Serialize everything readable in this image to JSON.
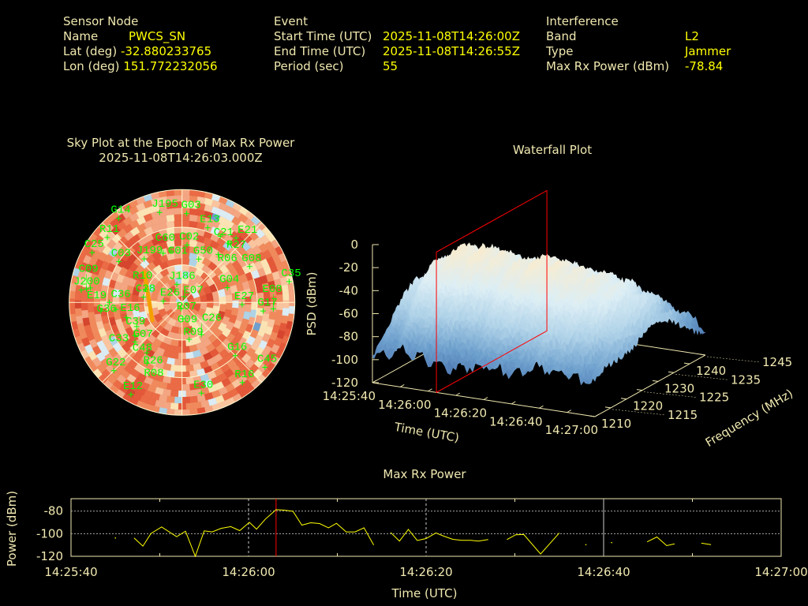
{
  "header": {
    "sensor_node": {
      "title": "Sensor Node",
      "name_label": "Name",
      "name": "PWCS_SN",
      "lat_label": "Lat (deg)",
      "lat": "-32.880233765",
      "lon_label": "Lon (deg)",
      "lon": "151.772232056"
    },
    "event": {
      "title": "Event",
      "start_label": "Start Time (UTC)",
      "start": "2025-11-08T14:26:00Z",
      "end_label": "End Time (UTC)",
      "end": "2025-11-08T14:26:55Z",
      "period_label": "Period (sec)",
      "period": "55"
    },
    "interference": {
      "title": "Interference",
      "band_label": "Band",
      "band": "L2",
      "type_label": "Type",
      "type": "Jammer",
      "max_label": "Max Rx Power (dBm)",
      "max": "-78.84"
    }
  },
  "colors": {
    "label": "#f0e8b0",
    "value": "#ffff00",
    "satellite": "#00ff00",
    "marker": "#ff0000",
    "track": "#f5a000"
  },
  "chart_data": [
    {
      "type": "scatter",
      "title": "Sky Plot at the Epoch of Max Rx Power",
      "subtitle": "2025-11-08T14:26:03.000Z",
      "elevation_rings": [
        0,
        30,
        60
      ],
      "satellites": [
        {
          "id": "J195",
          "az": 346,
          "el": 16
        },
        {
          "id": "G03",
          "az": 3,
          "el": 19
        },
        {
          "id": "G14",
          "az": 323,
          "el": 6
        },
        {
          "id": "E13",
          "az": 19,
          "el": 27
        },
        {
          "id": "C21",
          "az": 30,
          "el": 29
        },
        {
          "id": "R27",
          "az": 38,
          "el": 30
        },
        {
          "id": "E21",
          "az": 40,
          "el": 23
        },
        {
          "id": "R11",
          "az": 311,
          "el": 11
        },
        {
          "id": "C25",
          "az": 299,
          "el": 8
        },
        {
          "id": "C03",
          "az": 303,
          "el": 30
        },
        {
          "id": "J199",
          "az": 319,
          "el": 44
        },
        {
          "id": "C60",
          "az": 339,
          "el": 48
        },
        {
          "id": "C01",
          "az": 348,
          "el": 48
        },
        {
          "id": "C02",
          "az": 5,
          "el": 44
        },
        {
          "id": "G50",
          "az": 21,
          "el": 53
        },
        {
          "id": "R06",
          "az": 37,
          "el": 42
        },
        {
          "id": "G08",
          "az": 62,
          "el": 29
        },
        {
          "id": "C35",
          "az": 79,
          "el": 3
        },
        {
          "id": "G04",
          "az": 72,
          "el": 52
        },
        {
          "id": "E27",
          "az": 92,
          "el": 42
        },
        {
          "id": "G17",
          "az": 96,
          "el": 25
        },
        {
          "id": "E08",
          "az": 94,
          "el": 17
        },
        {
          "id": "J200",
          "az": 277,
          "el": 9
        },
        {
          "id": "C09",
          "az": 278,
          "el": 13
        },
        {
          "id": "E19",
          "az": 279,
          "el": 16
        },
        {
          "id": "C36",
          "az": 270,
          "el": 32
        },
        {
          "id": "G36",
          "az": 264,
          "el": 25
        },
        {
          "id": "E16",
          "az": 264,
          "el": 37
        },
        {
          "id": "C28",
          "az": 278,
          "el": 59
        },
        {
          "id": "R10",
          "az": 290,
          "el": 59
        },
        {
          "id": "E26",
          "az": 274,
          "el": 75
        },
        {
          "id": "J186",
          "az": 344,
          "el": 75
        },
        {
          "id": "E07",
          "az": 22,
          "el": 85
        },
        {
          "id": "R07",
          "az": 190,
          "el": 85
        },
        {
          "id": "G09",
          "az": 177,
          "el": 77
        },
        {
          "id": "C39",
          "az": 255,
          "el": 44
        },
        {
          "id": "G07",
          "az": 242,
          "el": 49
        },
        {
          "id": "C48",
          "az": 235,
          "el": 44
        },
        {
          "id": "C33",
          "az": 230,
          "el": 41
        },
        {
          "id": "R26",
          "az": 215,
          "el": 41
        },
        {
          "id": "R08",
          "az": 210,
          "el": 34
        },
        {
          "id": "R09",
          "az": 169,
          "el": 60
        },
        {
          "id": "C26",
          "az": 149,
          "el": 60
        },
        {
          "id": "G16",
          "az": 135,
          "el": 30
        },
        {
          "id": "C45",
          "az": 128,
          "el": 6
        },
        {
          "id": "R16",
          "az": 143,
          "el": 10
        },
        {
          "id": "E30",
          "az": 168,
          "el": 16
        },
        {
          "id": "E12",
          "az": 209,
          "el": 6
        },
        {
          "id": "G22",
          "az": 225,
          "el": 13
        }
      ]
    },
    {
      "type": "heatmap",
      "title": "Waterfall Plot",
      "xlabel": "Time (UTC)",
      "ylabel": "Frequency (MHz)",
      "zlabel": "PSD (dBm)",
      "x_ticks": [
        "14:25:40",
        "14:26:00",
        "14:26:20",
        "14:26:40",
        "14:27:00"
      ],
      "y_ticks": [
        "1210",
        "1215",
        "1220",
        "1225",
        "1230",
        "1235",
        "1240",
        "1245"
      ],
      "z_ticks": [
        "0",
        "-20",
        "-40",
        "-60",
        "-80",
        "-100",
        "-120"
      ],
      "zlim": [
        -120,
        0
      ],
      "time_seconds": [
        0,
        10,
        20,
        30,
        40,
        50,
        60,
        70,
        80
      ],
      "freq_mhz": [
        1210,
        1215,
        1220,
        1225,
        1230,
        1235,
        1240,
        1245
      ],
      "psd_dbm": [
        [
          -95,
          -88,
          -92,
          -96,
          -90,
          -94,
          -85,
          -88,
          -92
        ],
        [
          -82,
          -62,
          -66,
          -72,
          -62,
          -66,
          -62,
          -70,
          -82
        ],
        [
          -62,
          -42,
          -42,
          -48,
          -40,
          -44,
          -42,
          -52,
          -76
        ],
        [
          -52,
          -30,
          -30,
          -36,
          -30,
          -32,
          -36,
          -46,
          -70
        ],
        [
          -52,
          -32,
          -30,
          -38,
          -30,
          -35,
          -38,
          -46,
          -70
        ],
        [
          -62,
          -40,
          -40,
          -46,
          -40,
          -46,
          -48,
          -56,
          -76
        ],
        [
          -76,
          -60,
          -62,
          -66,
          -58,
          -62,
          -66,
          -72,
          -86
        ],
        [
          -90,
          -84,
          -88,
          -88,
          -85,
          -88,
          -88,
          -90,
          -95
        ]
      ],
      "marker_time_seconds": 23
    },
    {
      "type": "line",
      "title": "Max Rx Power",
      "xlabel": "Time (UTC)",
      "ylabel": "Power (dBm)",
      "x_origin": "14:25:40",
      "x_ticks": [
        "14:25:40",
        "14:26:00",
        "14:26:20",
        "14:26:40",
        "14:27:00"
      ],
      "y_ticks": [
        "-80",
        "-100",
        "-120"
      ],
      "xlim_seconds": [
        0,
        80
      ],
      "ylim": [
        -120,
        -69
      ],
      "marker_time_seconds": 23.1,
      "segments": [
        [
          [
            5.0,
            -103.8
          ]
        ],
        [
          [
            7.1,
            -103.8
          ],
          [
            8.1,
            -111
          ],
          [
            9.0,
            -99.8
          ],
          [
            10.2,
            -94
          ],
          [
            11.9,
            -102.7
          ],
          [
            12.9,
            -97.8
          ],
          [
            14.0,
            -120
          ],
          [
            15.0,
            -97.5
          ],
          [
            15.9,
            -98.4
          ],
          [
            16.9,
            -95.3
          ],
          [
            18.0,
            -93.7
          ],
          [
            19.0,
            -97.3
          ],
          [
            20.1,
            -89.9
          ],
          [
            20.9,
            -96
          ],
          [
            21.9,
            -87
          ],
          [
            23.1,
            -78.7
          ],
          [
            24.0,
            -79.1
          ],
          [
            25.0,
            -80.2
          ],
          [
            26.0,
            -92.4
          ],
          [
            27.0,
            -90.3
          ],
          [
            28.0,
            -91
          ],
          [
            29.0,
            -94.8
          ],
          [
            29.9,
            -90.8
          ],
          [
            31.0,
            -98.4
          ],
          [
            32.0,
            -98.4
          ],
          [
            33.0,
            -94.8
          ],
          [
            34.1,
            -110
          ]
        ],
        [
          [
            36.0,
            -98.9
          ],
          [
            37.0,
            -106.5
          ],
          [
            38.0,
            -96.2
          ],
          [
            39.0,
            -106
          ],
          [
            40.0,
            -104.3
          ],
          [
            41.1,
            -99.3
          ],
          [
            42.0,
            -102.2
          ],
          [
            43.0,
            -105
          ],
          [
            44.0,
            -105.8
          ],
          [
            45.0,
            -105.8
          ],
          [
            45.9,
            -106.5
          ],
          [
            47.0,
            -105.2
          ]
        ],
        [
          [
            49.1,
            -105.2
          ],
          [
            50.1,
            -100.9
          ],
          [
            51.0,
            -100.7
          ],
          [
            52.9,
            -118
          ],
          [
            55.0,
            -99.3
          ]
        ],
        [
          [
            58.0,
            -109.7
          ]
        ],
        [
          [
            60.9,
            -107.9
          ]
        ],
        [
          [
            64.9,
            -107.2
          ],
          [
            66.0,
            -102.9
          ],
          [
            67.1,
            -110.6
          ],
          [
            68.0,
            -109
          ]
        ],
        [
          [
            71.0,
            -108.3
          ],
          [
            72.1,
            -109.7
          ]
        ]
      ]
    }
  ]
}
